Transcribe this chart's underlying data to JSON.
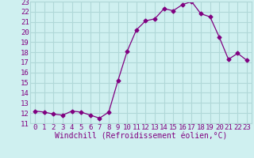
{
  "x": [
    0,
    1,
    2,
    3,
    4,
    5,
    6,
    7,
    8,
    9,
    10,
    11,
    12,
    13,
    14,
    15,
    16,
    17,
    18,
    19,
    20,
    21,
    22,
    23
  ],
  "y": [
    12.2,
    12.1,
    11.9,
    11.8,
    12.2,
    12.1,
    11.8,
    11.5,
    12.1,
    15.2,
    18.1,
    20.2,
    21.1,
    21.3,
    22.3,
    22.1,
    22.7,
    23.0,
    21.8,
    21.5,
    19.5,
    17.3,
    17.9,
    17.2
  ],
  "line_color": "#800080",
  "marker": "D",
  "marker_size": 2.5,
  "bg_color": "#cff0f0",
  "grid_color": "#b0d8d8",
  "xlabel": "Windchill (Refroidissement éolien,°C)",
  "xlabel_fontsize": 7,
  "tick_fontsize": 6.5,
  "ylim": [
    11,
    23
  ],
  "xlim": [
    -0.5,
    23.5
  ],
  "yticks": [
    11,
    12,
    13,
    14,
    15,
    16,
    17,
    18,
    19,
    20,
    21,
    22,
    23
  ],
  "xticks": [
    0,
    1,
    2,
    3,
    4,
    5,
    6,
    7,
    8,
    9,
    10,
    11,
    12,
    13,
    14,
    15,
    16,
    17,
    18,
    19,
    20,
    21,
    22,
    23
  ]
}
